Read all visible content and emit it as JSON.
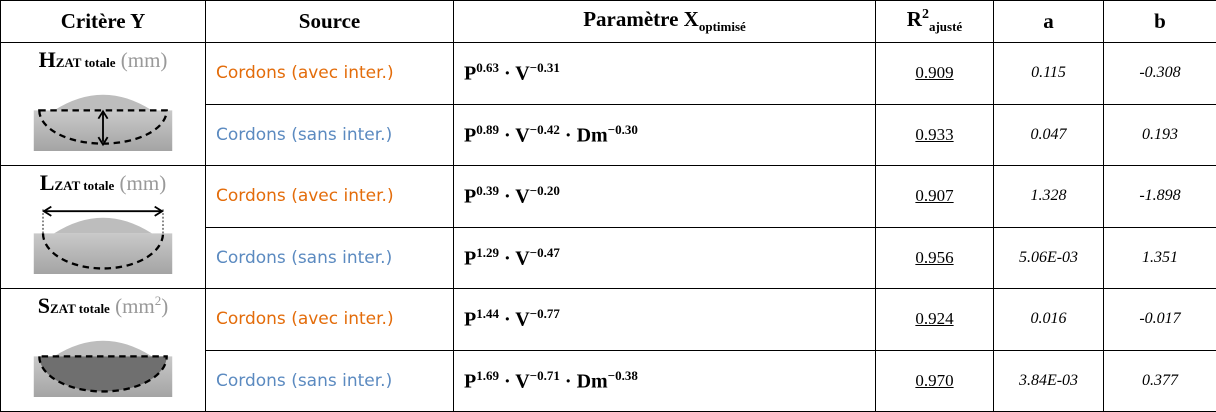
{
  "header": {
    "criterion": "Critère Y",
    "source": "Source",
    "param": {
      "text": "Paramètre X",
      "sub": "optimisé"
    },
    "r2": {
      "text": "R",
      "sup": "2",
      "sub": "ajusté"
    },
    "a": "a",
    "b": "b"
  },
  "groups": [
    {
      "criterion": {
        "letter": "H",
        "sub": "ZAT totale",
        "unit": [
          {
            "text": "(mm)"
          }
        ]
      },
      "rows": [
        {
          "source": "Cordons (avec inter.)",
          "color": "#e36c0a",
          "formula": [
            {
              "text": "P",
              "sup": "0.63"
            },
            {
              "text": " · V",
              "sup": "−0.31"
            }
          ],
          "r2": "0.909",
          "a": "0.115",
          "b": "-0.308"
        },
        {
          "source": "Cordons (sans inter.)",
          "color": "#5b8ac0",
          "formula": [
            {
              "text": "P",
              "sup": "0.89"
            },
            {
              "text": " · V",
              "sup": "−0.42"
            },
            {
              "text": " · Dm",
              "sup": "−0.30"
            }
          ],
          "r2": "0.933",
          "a": "0.047",
          "b": "0.193"
        }
      ]
    },
    {
      "criterion": {
        "letter": "L",
        "sub": "ZAT totale",
        "unit": [
          {
            "text": "(mm)"
          }
        ]
      },
      "rows": [
        {
          "source": "Cordons (avec inter.)",
          "color": "#e36c0a",
          "formula": [
            {
              "text": "P",
              "sup": "0.39"
            },
            {
              "text": " · V",
              "sup": "−0.20"
            }
          ],
          "r2": "0.907",
          "a": "1.328",
          "b": "-1.898"
        },
        {
          "source": "Cordons (sans inter.)",
          "color": "#5b8ac0",
          "formula": [
            {
              "text": "P",
              "sup": "1.29"
            },
            {
              "text": " · V",
              "sup": "−0.47"
            }
          ],
          "r2": "0.956",
          "a": "5.06E-03",
          "b": "1.351"
        }
      ]
    },
    {
      "criterion": {
        "letter": "S",
        "sub": "ZAT totale",
        "unit": [
          {
            "text": "(mm",
            "sup": "2"
          },
          {
            "text": ")"
          }
        ]
      },
      "rows": [
        {
          "source": "Cordons (avec inter.)",
          "color": "#e36c0a",
          "formula": [
            {
              "text": "P",
              "sup": "1.44"
            },
            {
              "text": " · V",
              "sup": "−0.77"
            }
          ],
          "r2": "0.924",
          "a": "0.016",
          "b": "-0.017"
        },
        {
          "source": "Cordons (sans inter.)",
          "color": "#5b8ac0",
          "formula": [
            {
              "text": "P",
              "sup": "1.69"
            },
            {
              "text": " · V",
              "sup": "−0.71"
            },
            {
              "text": " · Dm",
              "sup": "−0.38"
            }
          ],
          "r2": "0.970",
          "a": "3.84E-03",
          "b": "0.377"
        }
      ]
    }
  ]
}
